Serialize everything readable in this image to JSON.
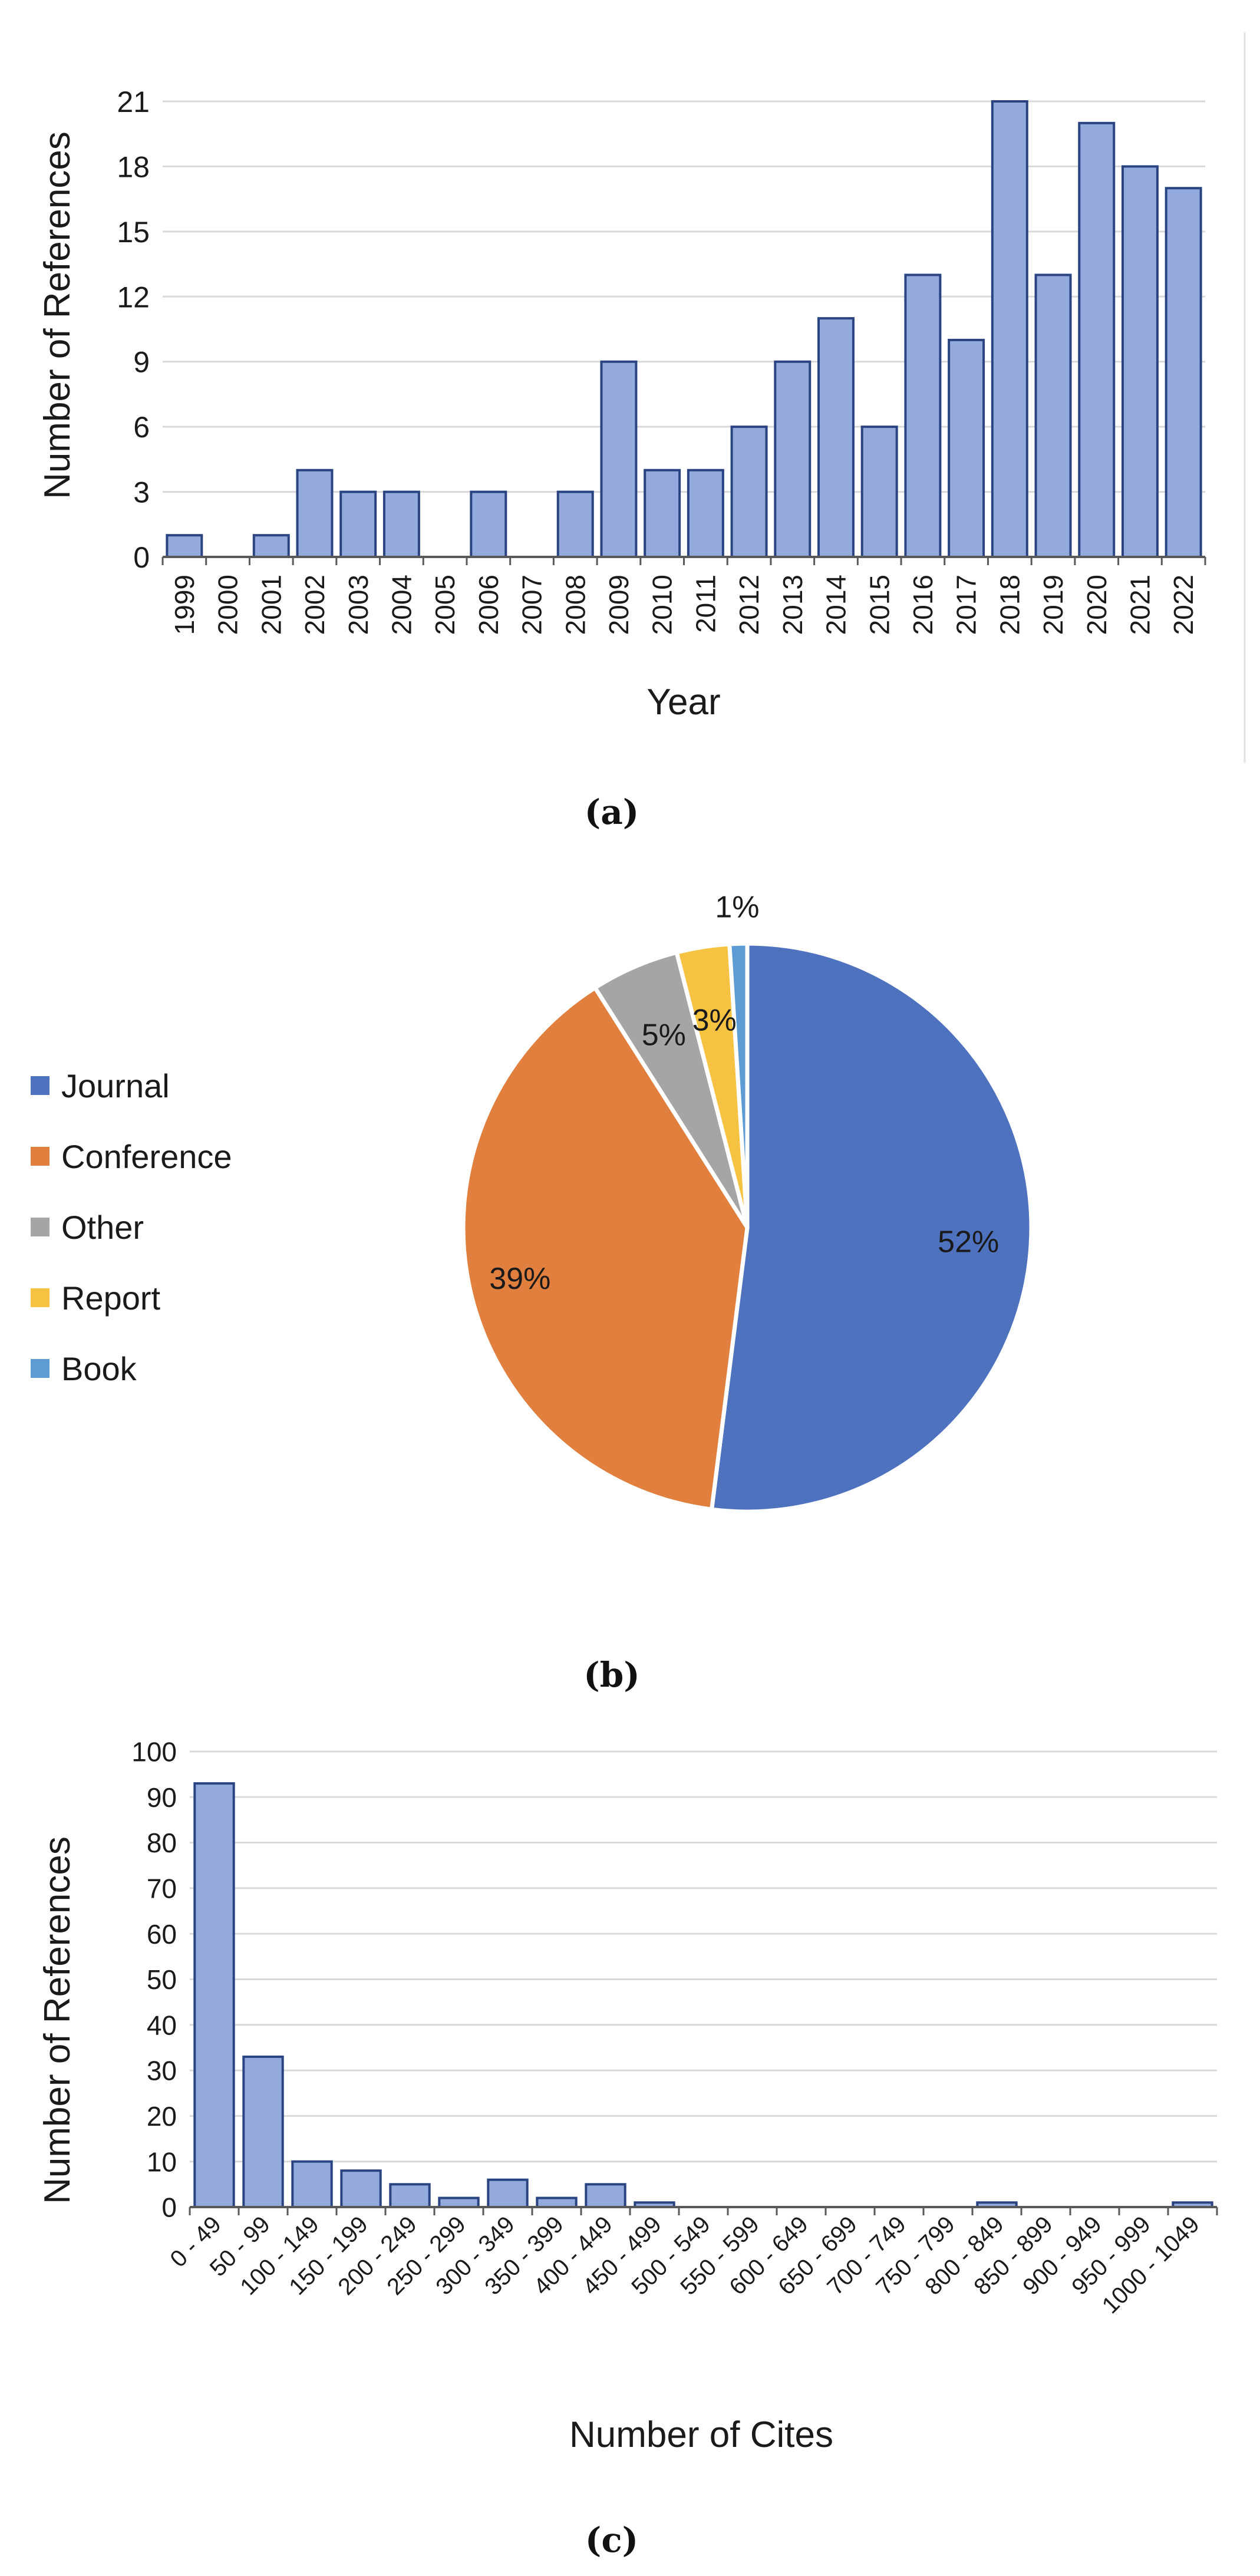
{
  "chart_data": [
    {
      "type": "bar",
      "panel": "a",
      "caption": "(a)",
      "xlabel": "Year",
      "ylabel": "Number of References",
      "ylim": [
        0,
        21
      ],
      "yticks": [
        "0",
        "3",
        "6",
        "9",
        "12",
        "15",
        "18",
        "21"
      ],
      "grid": true,
      "categories": [
        "1999",
        "2000",
        "2001",
        "2002",
        "2003",
        "2004",
        "2005",
        "2006",
        "2007",
        "2008",
        "2009",
        "2010",
        "2011",
        "2012",
        "2013",
        "2014",
        "2015",
        "2016",
        "2017",
        "2018",
        "2019",
        "2020",
        "2021",
        "2022"
      ],
      "values": [
        1,
        0,
        1,
        4,
        3,
        3,
        0,
        3,
        0,
        3,
        9,
        4,
        4,
        6,
        9,
        11,
        6,
        13,
        10,
        21,
        13,
        20,
        18,
        17
      ]
    },
    {
      "type": "pie",
      "panel": "b",
      "caption": "(b)",
      "legend_position": "left",
      "slices": [
        {
          "name": "Journal",
          "value": 52,
          "label": "52%",
          "color": "#4f72be"
        },
        {
          "name": "Conference",
          "value": 39,
          "label": "39%",
          "color": "#e07f3e"
        },
        {
          "name": "Other",
          "value": 5,
          "label": "5%",
          "color": "#a5a5a5"
        },
        {
          "name": "Report",
          "value": 3,
          "label": "3%",
          "color": "#f5c242"
        },
        {
          "name": "Book",
          "value": 1,
          "label": "1%",
          "color": "#5d9bd5"
        }
      ]
    },
    {
      "type": "bar",
      "panel": "c",
      "caption": "(c)",
      "xlabel": "Number of Cites",
      "ylabel": "Number of References",
      "ylim": [
        0,
        100
      ],
      "yticks": [
        "0",
        "10",
        "20",
        "30",
        "40",
        "50",
        "60",
        "70",
        "80",
        "90",
        "100"
      ],
      "grid": true,
      "categories": [
        "0 - 49",
        "50 - 99",
        "100 - 149",
        "150 - 199",
        "200 - 249",
        "250 - 299",
        "300 - 349",
        "350 - 399",
        "400 - 449",
        "450 - 499",
        "500 - 549",
        "550 - 599",
        "600 - 649",
        "650 - 699",
        "700 - 749",
        "750 - 799",
        "800 - 849",
        "850 - 899",
        "900 - 949",
        "950 - 999",
        "1000 - 1049"
      ],
      "values": [
        93,
        33,
        10,
        8,
        5,
        2,
        6,
        2,
        5,
        1,
        0,
        0,
        0,
        0,
        0,
        0,
        1,
        0,
        0,
        0,
        1
      ]
    }
  ],
  "colors": {
    "bar_fill": "#94aadc",
    "bar_stroke": "#2a4482",
    "grid": "#d9d9d9",
    "axis": "#595959"
  }
}
